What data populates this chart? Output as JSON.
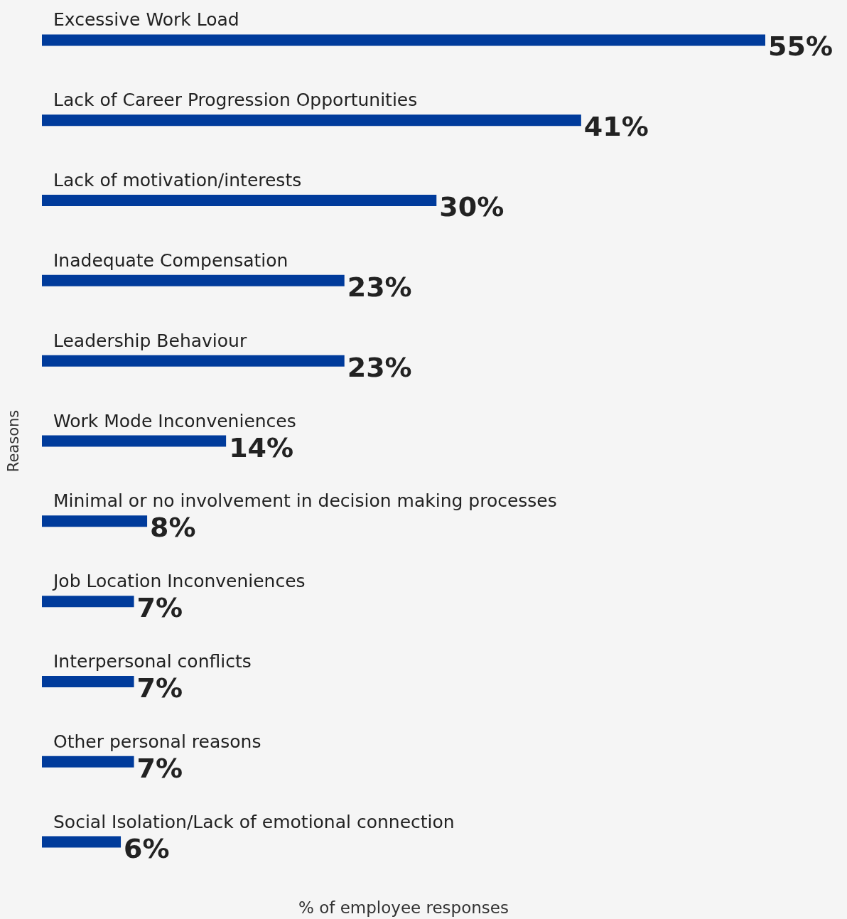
{
  "chart_data": {
    "type": "bar",
    "orientation": "horizontal",
    "xlabel": "% of employee responses",
    "ylabel": "Reasons",
    "categories": [
      "Excessive Work Load",
      "Lack of Career Progression Opportunities",
      "Lack of motivation/interests",
      "Inadequate Compensation",
      "Leadership Behaviour",
      "Work Mode Inconveniences",
      "Minimal or no involvement in decision making processes",
      "Job Location Inconveniences",
      "Interpersonal conflicts",
      "Other personal reasons",
      "Social Isolation/Lack of emotional connection"
    ],
    "values": [
      55,
      41,
      30,
      23,
      23,
      14,
      8,
      7,
      7,
      7,
      6
    ],
    "value_labels": [
      "55%",
      "41%",
      "30%",
      "23%",
      "23%",
      "14%",
      "8%",
      "7%",
      "7%",
      "7%",
      "6%"
    ],
    "color": "#003b9b"
  }
}
